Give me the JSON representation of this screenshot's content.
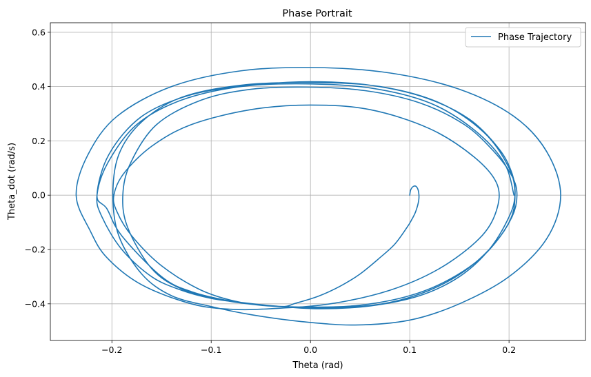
{
  "chart_data": {
    "type": "line",
    "title": "Phase Portrait",
    "xlabel": "Theta (rad)",
    "ylabel": "Theta_dot (rad/s)",
    "xlim": [
      -0.262,
      0.277
    ],
    "ylim": [
      -0.535,
      0.635
    ],
    "xticks": [
      -0.2,
      -0.1,
      0.0,
      0.1,
      0.2
    ],
    "xtick_labels": [
      "−0.2",
      "−0.1",
      "0.0",
      "0.1",
      "0.2"
    ],
    "yticks": [
      -0.4,
      -0.2,
      0.0,
      0.2,
      0.4,
      0.6
    ],
    "ytick_labels": [
      "−0.4",
      "−0.2",
      "0.0",
      "0.2",
      "0.4",
      "0.6"
    ],
    "grid": true,
    "legend": {
      "position": "top-right"
    },
    "series": [
      {
        "name": "Phase Trajectory",
        "color": "#1f77b4",
        "x": [
          0.1,
          0.101,
          0.104,
          0.107,
          0.109,
          0.109,
          0.106,
          0.102,
          0.097,
          0.085,
          0.07,
          0.05,
          0.03,
          0.008,
          -0.015,
          -0.03,
          -0.07,
          -0.11,
          -0.15,
          -0.18,
          -0.195,
          -0.198,
          -0.188,
          -0.16,
          -0.12,
          -0.06,
          0.0,
          0.06,
          0.12,
          0.165,
          0.188,
          0.187,
          0.17,
          0.13,
          0.08,
          0.02,
          -0.04,
          -0.08,
          -0.12,
          -0.17,
          -0.205,
          -0.222,
          -0.236,
          -0.224,
          -0.195,
          -0.14,
          -0.07,
          0.005,
          0.08,
          0.15,
          0.205,
          0.238,
          0.252,
          0.238,
          0.2,
          0.15,
          0.1,
          0.045,
          -0.01,
          -0.06,
          -0.1,
          -0.14,
          -0.17,
          -0.193,
          -0.199,
          -0.193,
          -0.17,
          -0.13,
          -0.07,
          0.0,
          0.07,
          0.13,
          0.175,
          0.2,
          0.206,
          0.2,
          0.175,
          0.14,
          0.1,
          0.05,
          0.0,
          -0.05,
          -0.09,
          -0.13,
          -0.16,
          -0.184,
          -0.189,
          -0.181,
          -0.155,
          -0.11,
          -0.06,
          -0.004,
          0.055,
          0.11,
          0.155,
          0.185,
          0.203,
          0.208,
          0.203,
          0.185,
          0.155,
          0.12,
          0.08,
          0.04,
          0.0,
          -0.04,
          -0.08,
          -0.12,
          -0.15,
          -0.19,
          -0.205,
          -0.215,
          -0.203,
          -0.17,
          -0.12,
          -0.06,
          0.0,
          0.06,
          0.115,
          0.16,
          0.19,
          0.203,
          0.206,
          0.2,
          0.18,
          0.15,
          0.11,
          0.06,
          0.01,
          -0.03,
          -0.07,
          -0.1,
          -0.13,
          -0.16,
          -0.19,
          -0.21,
          -0.215,
          -0.204,
          -0.175,
          -0.13,
          -0.07,
          -0.005,
          0.06,
          0.12,
          0.165,
          0.195,
          0.205
        ],
        "y": [
          0.0,
          0.02,
          0.033,
          0.03,
          0.01,
          -0.02,
          -0.06,
          -0.09,
          -0.12,
          -0.18,
          -0.23,
          -0.29,
          -0.335,
          -0.372,
          -0.398,
          -0.41,
          -0.395,
          -0.35,
          -0.26,
          -0.15,
          -0.06,
          0.0,
          0.08,
          0.18,
          0.26,
          0.315,
          0.332,
          0.315,
          0.245,
          0.14,
          0.04,
          -0.06,
          -0.16,
          -0.27,
          -0.35,
          -0.4,
          -0.418,
          -0.42,
          -0.4,
          -0.33,
          -0.23,
          -0.13,
          0.0,
          0.15,
          0.29,
          0.4,
          0.458,
          0.47,
          0.45,
          0.39,
          0.29,
          0.16,
          0.0,
          -0.16,
          -0.3,
          -0.4,
          -0.46,
          -0.478,
          -0.465,
          -0.44,
          -0.41,
          -0.37,
          -0.29,
          -0.15,
          0.0,
          0.15,
          0.27,
          0.36,
          0.405,
          0.415,
          0.4,
          0.34,
          0.23,
          0.1,
          0.0,
          -0.1,
          -0.22,
          -0.31,
          -0.37,
          -0.405,
          -0.412,
          -0.405,
          -0.385,
          -0.345,
          -0.27,
          -0.12,
          0.0,
          0.12,
          0.26,
          0.35,
          0.39,
          0.398,
          0.385,
          0.34,
          0.26,
          0.16,
          0.07,
          0.0,
          -0.08,
          -0.18,
          -0.28,
          -0.35,
          -0.395,
          -0.412,
          -0.415,
          -0.408,
          -0.39,
          -0.355,
          -0.3,
          -0.15,
          -0.05,
          0.0,
          0.15,
          0.29,
          0.37,
          0.405,
          0.418,
          0.405,
          0.36,
          0.28,
          0.17,
          0.08,
          0.0,
          -0.08,
          -0.2,
          -0.3,
          -0.37,
          -0.408,
          -0.418,
          -0.41,
          -0.395,
          -0.38,
          -0.35,
          -0.3,
          -0.2,
          -0.08,
          0.0,
          0.12,
          0.26,
          0.35,
          0.4,
          0.41,
          0.395,
          0.34,
          0.24,
          0.12,
          0.0
        ]
      }
    ]
  }
}
